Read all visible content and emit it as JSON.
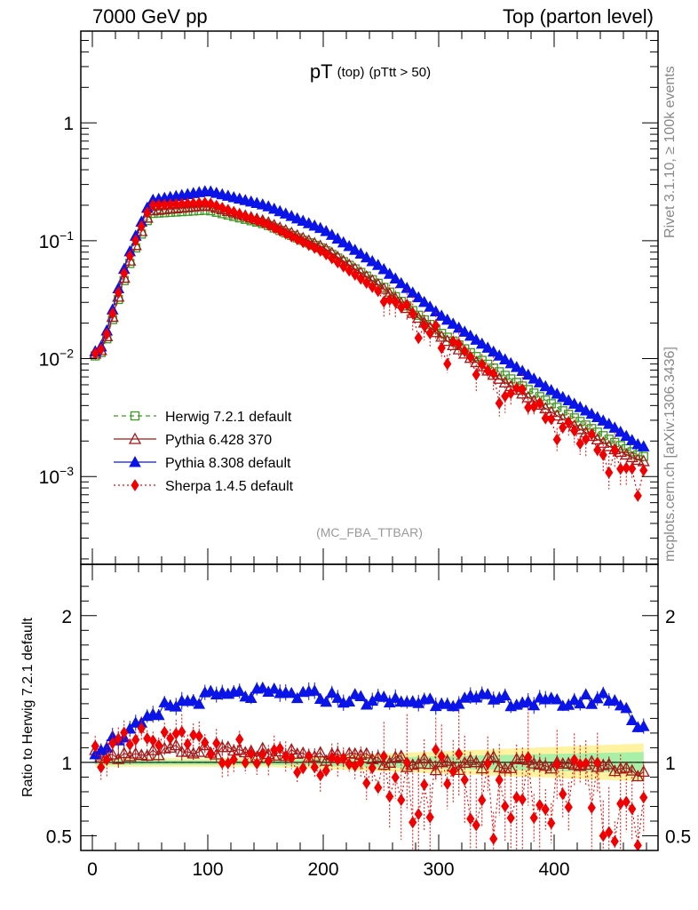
{
  "header": {
    "left": "7000 GeV pp",
    "right": "Top (parton level)"
  },
  "sidebar": {
    "rivet": "Rivet 3.1.10, ≥ 100k events",
    "mcplots": "mcplots.cern.ch [arXiv:1306.3436]"
  },
  "colors": {
    "herwig": "#3a9a1e",
    "pythia6": "#a01818",
    "pythia8": "#0a14e6",
    "sherpa": "#f00000",
    "band_yellow": "#fff2a0",
    "band_green": "#a8f0a8"
  },
  "chart_data": [
    {
      "type": "line",
      "scale": "log",
      "title_main": "pT",
      "title_sub": "(top)",
      "title_cut": "(pTtt > 50)",
      "watermark": "(MC_FBA_TTBAR)",
      "xlim": [
        -10,
        490
      ],
      "ylim": [
        0.00018,
        6
      ],
      "ytick_labels": [
        {
          "value": 1,
          "base": "1",
          "exp": ""
        },
        {
          "value": 0.1,
          "base": "10",
          "exp": "−1"
        },
        {
          "value": 0.01,
          "base": "10",
          "exp": "−2"
        },
        {
          "value": 0.001,
          "base": "10",
          "exp": "−3"
        }
      ],
      "legend": [
        {
          "label": "Herwig 7.2.1 default",
          "series": "herwig"
        },
        {
          "label": "Pythia 6.428 370",
          "series": "pythia6"
        },
        {
          "label": "Pythia 8.308 default",
          "series": "pythia8"
        },
        {
          "label": "Sherpa 1.4.5 default",
          "series": "sherpa"
        }
      ],
      "series": {
        "herwig": {
          "x": [
            0,
            50,
            100,
            150,
            200,
            250,
            300,
            350,
            400,
            450,
            475
          ],
          "values": [
            0.011,
            0.17,
            0.182,
            0.138,
            0.085,
            0.042,
            0.017,
            0.008,
            0.004,
            0.002,
            0.00148
          ]
        },
        "pythia6": {
          "x": [
            0,
            50,
            100,
            150,
            200,
            250,
            300,
            350,
            400,
            450,
            475
          ],
          "values": [
            0.0115,
            0.18,
            0.2,
            0.146,
            0.088,
            0.041,
            0.016,
            0.007,
            0.0034,
            0.00175,
            0.00135
          ]
        },
        "pythia8": {
          "x": [
            0,
            50,
            100,
            150,
            200,
            250,
            300,
            350,
            400,
            450,
            475
          ],
          "values": [
            0.012,
            0.22,
            0.265,
            0.2,
            0.125,
            0.06,
            0.024,
            0.011,
            0.0052,
            0.0027,
            0.0018
          ]
        },
        "sherpa": {
          "x": [
            0,
            50,
            100,
            150,
            200,
            250,
            300,
            350,
            400,
            450,
            475
          ],
          "values": [
            0.0115,
            0.2,
            0.21,
            0.14,
            0.08,
            0.036,
            0.014,
            0.006,
            0.003,
            0.0014,
            0.0009
          ]
        }
      }
    },
    {
      "type": "line",
      "ylabel": "Ratio to Herwig 7.2.1 default",
      "xlim": [
        -10,
        490
      ],
      "ylim": [
        0.4,
        2.35
      ],
      "xtick_labels": [
        "0",
        "100",
        "200",
        "300",
        "400"
      ],
      "ytick_labels": [
        "0.5",
        "1",
        "2"
      ],
      "series": {
        "herwig": {
          "x": [
            0,
            478
          ],
          "values": [
            1.0,
            1.0
          ]
        },
        "pythia6": {
          "x": [
            0,
            50,
            100,
            150,
            200,
            250,
            300,
            350,
            400,
            450,
            475
          ],
          "values": [
            1.05,
            1.06,
            1.1,
            1.06,
            1.04,
            1.02,
            0.98,
            1.0,
            0.99,
            0.97,
            0.92
          ]
        },
        "pythia8": {
          "x": [
            0,
            50,
            100,
            150,
            200,
            250,
            300,
            350,
            400,
            450,
            475
          ],
          "values": [
            1.1,
            1.35,
            1.45,
            1.47,
            1.45,
            1.42,
            1.42,
            1.43,
            1.4,
            1.45,
            1.25
          ]
        },
        "sherpa": {
          "x": [
            0,
            50,
            100,
            150,
            200,
            250,
            300,
            350,
            400,
            450,
            475
          ],
          "values": [
            1.05,
            1.15,
            1.12,
            1.02,
            0.95,
            0.9,
            0.82,
            0.75,
            0.8,
            0.7,
            0.6
          ]
        }
      }
    }
  ]
}
